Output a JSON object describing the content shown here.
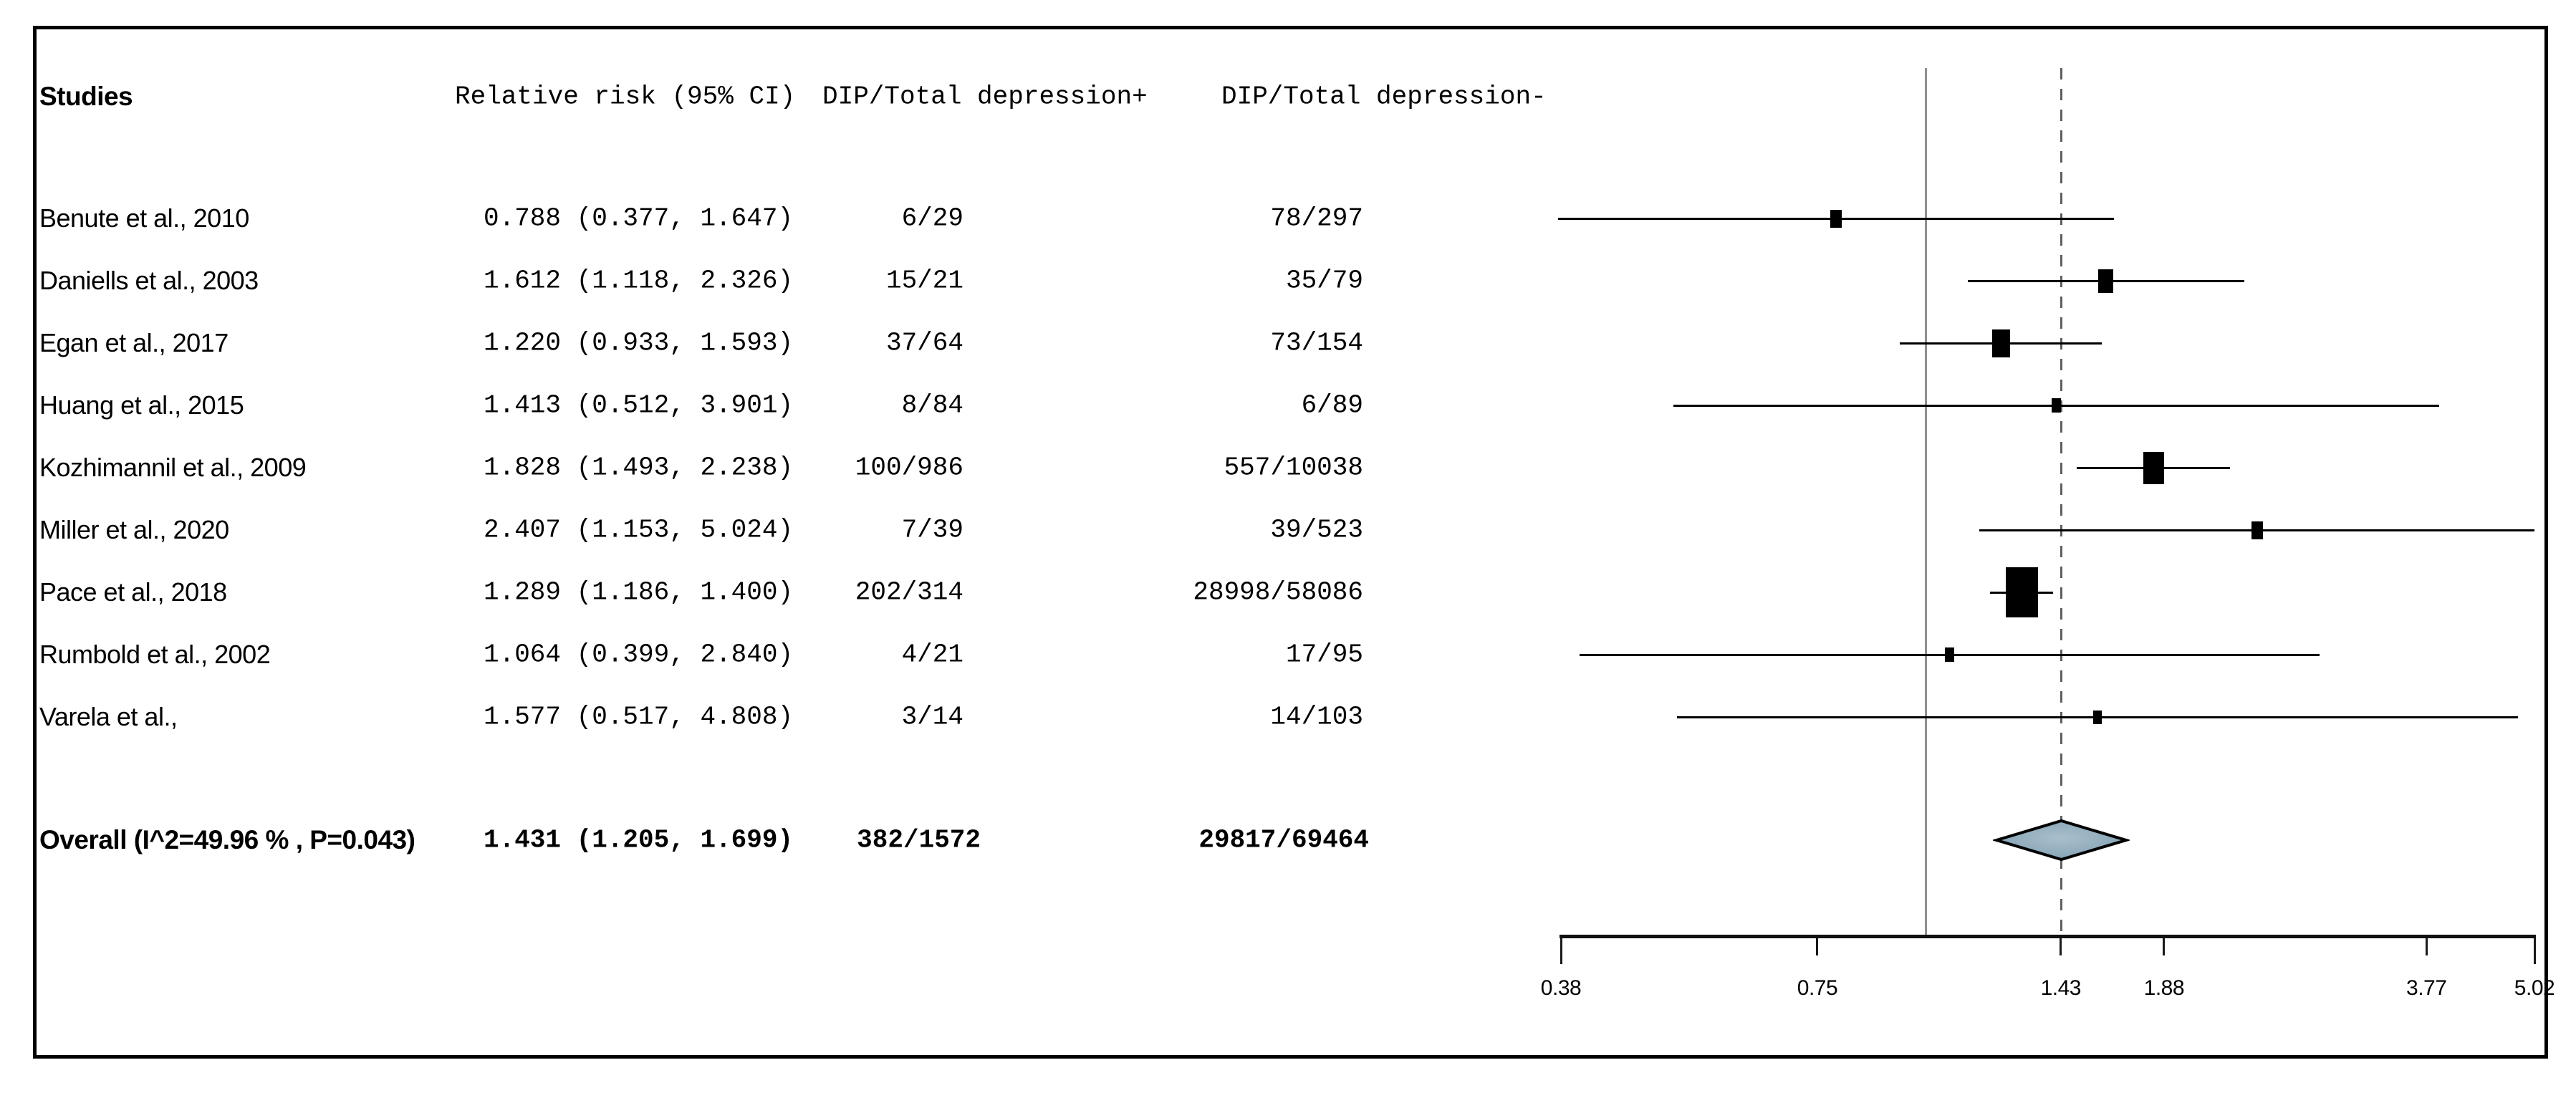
{
  "header": {
    "studies": "Studies",
    "relative_risk": "Relative risk (95% CI)",
    "dip_pos": "DIP/Total depression+",
    "dip_neg": "DIP/Total depression-"
  },
  "colors": {
    "background": "#ffffff",
    "frame_border": "#000000",
    "text": "#000000",
    "ci_line": "#000000",
    "marker": "#000000",
    "reference_line": "#8f8f8f",
    "overall_dashed_line": "#5f5f5f",
    "axis_line": "#111111",
    "diamond_fill": "#7f9db1",
    "diamond_fill_light": "#a9c0cc",
    "diamond_stroke": "#000000"
  },
  "chart_data": {
    "type": "forest",
    "x_scale": "log",
    "x_range": [
      0.38,
      5.02
    ],
    "axis_tick_labels": [
      "0.38",
      "0.75",
      "1.43",
      "1.88",
      "3.77",
      "5.02"
    ],
    "axis_tick_values": [
      0.38,
      0.75,
      1.43,
      1.88,
      3.77,
      5.02
    ],
    "reference_line_value": 1.0,
    "overall_dashed_line_value": 1.431,
    "legend_position": "none",
    "grid": false,
    "studies": [
      {
        "name": "Benute et al., 2010",
        "rr_text": "0.788 (0.377, 1.647)",
        "dip_pos": "6/29",
        "dip_neg": "78/297",
        "rr": 0.788,
        "ci_low": 0.377,
        "ci_high": 1.647,
        "marker_w": 16,
        "marker_h": 25
      },
      {
        "name": "Daniells et al., 2003",
        "rr_text": "1.612 (1.118, 2.326)",
        "dip_pos": "15/21",
        "dip_neg": "35/79",
        "rr": 1.612,
        "ci_low": 1.118,
        "ci_high": 2.326,
        "marker_w": 21,
        "marker_h": 33
      },
      {
        "name": "Egan et al., 2017",
        "rr_text": "1.220 (0.933, 1.593)",
        "dip_pos": "37/64",
        "dip_neg": "73/154",
        "rr": 1.22,
        "ci_low": 0.933,
        "ci_high": 1.593,
        "marker_w": 25,
        "marker_h": 39
      },
      {
        "name": "Huang et al., 2015",
        "rr_text": "1.413 (0.512, 3.901)",
        "dip_pos": "8/84",
        "dip_neg": "6/89",
        "rr": 1.413,
        "ci_low": 0.512,
        "ci_high": 3.901,
        "marker_w": 13,
        "marker_h": 20
      },
      {
        "name": "Kozhimannil et al., 2009",
        "rr_text": "1.828 (1.493, 2.238)",
        "dip_pos": "100/986",
        "dip_neg": "557/10038",
        "rr": 1.828,
        "ci_low": 1.493,
        "ci_high": 2.238,
        "marker_w": 29,
        "marker_h": 45
      },
      {
        "name": "Miller et al., 2020",
        "rr_text": "2.407 (1.153, 5.024)",
        "dip_pos": "7/39",
        "dip_neg": "39/523",
        "rr": 2.407,
        "ci_low": 1.153,
        "ci_high": 5.024,
        "marker_w": 16,
        "marker_h": 25
      },
      {
        "name": "Pace et al., 2018",
        "rr_text": "1.289 (1.186, 1.400)",
        "dip_pos": "202/314",
        "dip_neg": "28998/58086",
        "rr": 1.289,
        "ci_low": 1.186,
        "ci_high": 1.4,
        "marker_w": 45,
        "marker_h": 70
      },
      {
        "name": "Rumbold et al., 2002",
        "rr_text": "1.064 (0.399, 2.840)",
        "dip_pos": "4/21",
        "dip_neg": "17/95",
        "rr": 1.064,
        "ci_low": 0.399,
        "ci_high": 2.84,
        "marker_w": 13,
        "marker_h": 20
      },
      {
        "name": "Varela et al.,",
        "rr_text": "1.577 (0.517, 4.808)",
        "dip_pos": "3/14",
        "dip_neg": "14/103",
        "rr": 1.577,
        "ci_low": 0.517,
        "ci_high": 4.808,
        "marker_w": 12,
        "marker_h": 19
      }
    ],
    "overall": {
      "label": "Overall (I^2=49.96 % , P=0.043)",
      "rr_text": "1.431 (1.205, 1.699)",
      "dip_pos": "382/1572",
      "dip_neg": "29817/69464",
      "rr": 1.431,
      "ci_low": 1.205,
      "ci_high": 1.699
    }
  }
}
